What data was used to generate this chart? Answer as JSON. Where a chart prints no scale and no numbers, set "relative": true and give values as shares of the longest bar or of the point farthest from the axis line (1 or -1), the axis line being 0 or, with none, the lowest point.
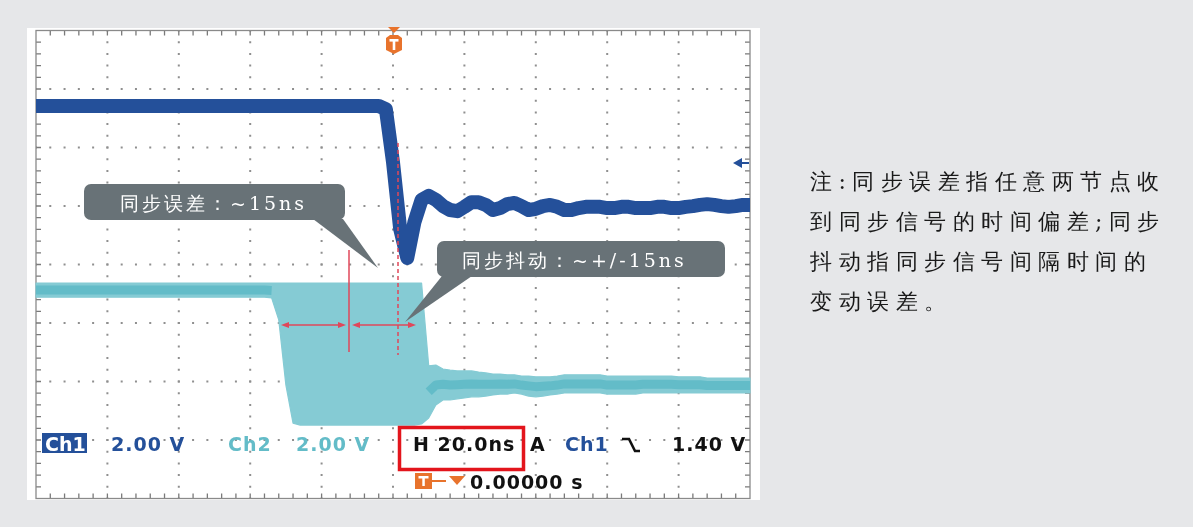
{
  "chart_data": {
    "type": "line",
    "relative": true,
    "grid": true,
    "categories": [
      null,
      null,
      null,
      null,
      null,
      null,
      null,
      null,
      null,
      null,
      null,
      null,
      null,
      null,
      null,
      null,
      null,
      null,
      null,
      null,
      null,
      null,
      null,
      null,
      null,
      null,
      null,
      null,
      null,
      null,
      null,
      null,
      null,
      null,
      null,
      null,
      null,
      null,
      null,
      null,
      null,
      null,
      null,
      null,
      null,
      null,
      null,
      null,
      null,
      null,
      null,
      null,
      null,
      null,
      null,
      null,
      null,
      null,
      null,
      null,
      null,
      null,
      null,
      null,
      null,
      null,
      null,
      null,
      null,
      null,
      null,
      null,
      null,
      null,
      null,
      null,
      null,
      null,
      null,
      null,
      null,
      null,
      null,
      null,
      null,
      null,
      null,
      null,
      null,
      null,
      null,
      null,
      null,
      null,
      null,
      null,
      null,
      null,
      null,
      null,
      null
    ],
    "series": [
      {
        "color": "#24509a",
        "values": [
          1.0,
          1.0,
          1.0,
          1.0,
          1.0,
          1.0,
          1.0,
          1.0,
          1.0,
          1.0,
          1.0,
          1.0,
          1.0,
          1.0,
          1.0,
          1.0,
          1.0,
          1.0,
          1.0,
          1.0,
          1.0,
          1.0,
          1.0,
          1.0,
          1.0,
          1.0,
          1.0,
          1.0,
          1.0,
          1.0,
          1.0,
          1.0,
          1.0,
          1.0,
          1.0,
          1.0,
          1.0,
          1.0,
          1.0,
          1.0,
          1.0,
          1.0,
          1.0,
          1.0,
          1.0,
          1.0,
          1.0,
          1.0,
          1.0,
          0.992,
          0.857,
          0.687,
          0.613,
          0.704,
          0.761,
          0.771,
          0.761,
          0.745,
          0.735,
          0.732,
          0.743,
          0.755,
          0.755,
          0.748,
          0.735,
          0.74,
          0.75,
          0.753,
          0.745,
          0.735,
          0.738,
          0.745,
          0.748,
          0.743,
          0.735,
          0.735,
          0.74,
          0.743,
          0.743,
          0.743,
          0.74,
          0.74,
          0.743,
          0.743,
          0.74,
          0.74,
          0.74,
          0.743,
          0.743,
          0.74,
          0.74,
          0.743,
          0.745,
          0.748,
          0.75,
          0.748,
          0.745,
          0.743,
          0.745,
          0.748,
          0.748
        ]
      },
      {
        "color": "#63bcc8",
        "values": [
          0.531,
          0.531,
          0.531,
          0.531,
          0.531,
          0.531,
          0.531,
          0.531,
          0.531,
          0.531,
          0.531,
          0.531,
          0.531,
          0.531,
          0.531,
          0.531,
          0.531,
          0.531,
          0.531,
          0.531,
          0.531,
          0.531,
          0.531,
          0.531,
          0.531,
          0.531,
          0.531,
          0.531,
          0.531,
          0.531,
          0.531,
          0.531,
          0.531,
          0.53,
          null,
          null,
          null,
          null,
          null,
          null,
          null,
          null,
          null,
          null,
          null,
          null,
          null,
          null,
          null,
          null,
          null,
          null,
          null,
          null,
          null,
          0.272,
          0.289,
          0.291,
          0.289,
          0.29,
          0.291,
          0.292,
          0.291,
          0.291,
          0.291,
          0.292,
          0.291,
          0.292,
          0.289,
          0.287,
          0.285,
          0.286,
          0.287,
          0.289,
          0.292,
          0.292,
          0.292,
          0.292,
          0.292,
          0.292,
          0.289,
          0.289,
          0.289,
          0.289,
          0.289,
          0.291,
          0.291,
          0.291,
          0.291,
          0.291,
          0.29,
          0.29,
          0.29,
          0.29,
          0.288,
          0.288,
          0.288,
          0.288,
          0.288,
          0.288,
          0.288
        ],
        "upper": [
          0.549,
          0.549,
          0.549,
          0.549,
          0.549,
          0.549,
          0.549,
          0.549,
          0.549,
          0.549,
          0.549,
          0.549,
          0.549,
          0.549,
          0.549,
          0.549,
          0.549,
          0.549,
          0.549,
          0.549,
          0.549,
          0.549,
          0.549,
          0.549,
          0.549,
          0.549,
          0.549,
          0.549,
          0.549,
          0.549,
          0.549,
          0.549,
          0.549,
          0.549,
          0.549,
          0.549,
          0.549,
          0.549,
          0.549,
          0.549,
          0.549,
          0.549,
          0.549,
          0.549,
          0.549,
          0.549,
          0.549,
          0.549,
          0.549,
          0.549,
          0.549,
          0.549,
          0.549,
          0.549,
          0.549,
          0.338,
          0.34,
          0.33,
          0.327,
          0.325,
          0.325,
          0.325,
          0.322,
          0.32,
          0.317,
          0.317,
          0.315,
          0.315,
          0.312,
          0.312,
          0.31,
          0.31,
          0.31,
          0.312,
          0.315,
          0.315,
          0.315,
          0.315,
          0.315,
          0.315,
          0.312,
          0.312,
          0.312,
          0.312,
          0.312,
          0.312,
          0.312,
          0.312,
          0.312,
          0.312,
          0.31,
          0.31,
          0.31,
          0.31,
          0.307,
          0.307,
          0.307,
          0.307,
          0.307,
          0.307,
          0.307
        ],
        "lower": [
          0.513,
          0.513,
          0.513,
          0.513,
          0.513,
          0.513,
          0.513,
          0.513,
          0.513,
          0.513,
          0.513,
          0.513,
          0.513,
          0.513,
          0.513,
          0.513,
          0.513,
          0.513,
          0.513,
          0.513,
          0.513,
          0.513,
          0.513,
          0.513,
          0.513,
          0.513,
          0.513,
          0.513,
          0.513,
          0.513,
          0.513,
          0.513,
          0.513,
          0.511,
          0.455,
          0.289,
          0.192,
          0.187,
          0.187,
          0.187,
          0.187,
          0.187,
          0.187,
          0.187,
          0.187,
          0.187,
          0.187,
          0.187,
          0.187,
          0.187,
          0.187,
          0.187,
          0.187,
          0.187,
          0.19,
          0.205,
          0.238,
          0.251,
          0.251,
          0.254,
          0.256,
          0.259,
          0.259,
          0.261,
          0.264,
          0.266,
          0.266,
          0.269,
          0.266,
          0.261,
          0.259,
          0.261,
          0.264,
          0.266,
          0.269,
          0.269,
          0.269,
          0.269,
          0.269,
          0.269,
          0.266,
          0.266,
          0.266,
          0.266,
          0.266,
          0.269,
          0.269,
          0.269,
          0.269,
          0.269,
          0.269,
          0.269,
          0.269,
          0.269,
          0.269,
          0.269,
          0.269,
          0.269,
          0.269,
          0.269,
          0.269
        ]
      }
    ],
    "annotations": [
      "同步误差：~15ns",
      "同步抖动：~+/-15ns",
      "Ch1",
      "2.00 V",
      "Ch2",
      "2.00 V",
      "H 20.0ns",
      "A",
      "Ch1",
      "1.40 V",
      "0.00000 s",
      "注:同步误差指任意两节点收到同步信号的时间偏差;同步抖动指同步信号间隔时间的变动误差。"
    ]
  }
}
